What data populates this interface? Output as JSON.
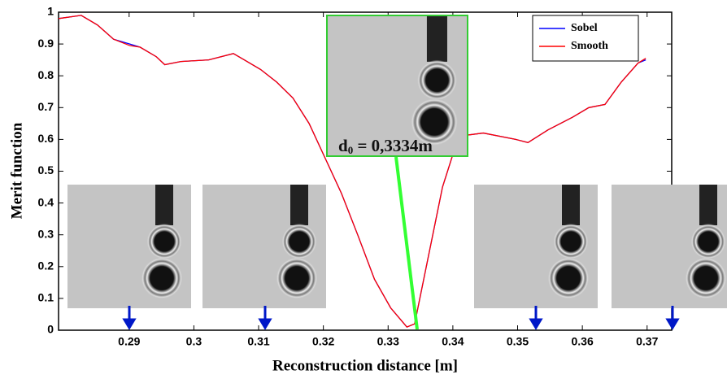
{
  "chart_data": {
    "type": "line",
    "x_label": "Reconstruction distance [m]",
    "y_label": "Merit function",
    "annotation": {
      "symbol": "d",
      "subscript": "0",
      "text": " = 0,3334m"
    },
    "x": [
      0.2791,
      0.2826,
      0.2851,
      0.2876,
      0.2901,
      0.2917,
      0.2942,
      0.2955,
      0.298,
      0.3023,
      0.3061,
      0.3078,
      0.3103,
      0.3128,
      0.3153,
      0.3178,
      0.3203,
      0.3228,
      0.3253,
      0.3279,
      0.3304,
      0.3329,
      0.3341,
      0.3359,
      0.3384,
      0.3409,
      0.3447,
      0.3497,
      0.3516,
      0.3547,
      0.3585,
      0.361,
      0.3635,
      0.366,
      0.3686,
      0.3698
    ],
    "series": [
      {
        "name": "Sobel",
        "color": "#0000ff",
        "values": [
          0.98,
          0.99,
          0.96,
          0.915,
          0.9,
          0.89,
          0.86,
          0.835,
          0.845,
          0.85,
          0.87,
          0.85,
          0.82,
          0.78,
          0.73,
          0.65,
          0.54,
          0.43,
          0.3,
          0.16,
          0.07,
          0.01,
          0.02,
          0.2,
          0.45,
          0.61,
          0.62,
          0.6,
          0.59,
          0.63,
          0.67,
          0.7,
          0.71,
          0.78,
          0.84,
          0.85
        ]
      },
      {
        "name": "Smooth",
        "color": "#ff0000",
        "values": [
          0.98,
          0.99,
          0.96,
          0.915,
          0.895,
          0.89,
          0.86,
          0.835,
          0.845,
          0.85,
          0.87,
          0.85,
          0.82,
          0.78,
          0.73,
          0.65,
          0.54,
          0.43,
          0.3,
          0.16,
          0.07,
          0.01,
          0.02,
          0.2,
          0.45,
          0.61,
          0.62,
          0.6,
          0.59,
          0.63,
          0.67,
          0.7,
          0.71,
          0.78,
          0.84,
          0.855
        ]
      }
    ],
    "xlim": [
      0.2791,
      0.3738
    ],
    "ylim": [
      0,
      1
    ],
    "xticks": [
      0.29,
      0.3,
      0.31,
      0.32,
      0.33,
      0.34,
      0.35,
      0.36,
      0.37
    ],
    "yticks": [
      0,
      0.1,
      0.2,
      0.3,
      0.4,
      0.5,
      0.6,
      0.7,
      0.8,
      0.9,
      1
    ],
    "legend": "upper right"
  }
}
